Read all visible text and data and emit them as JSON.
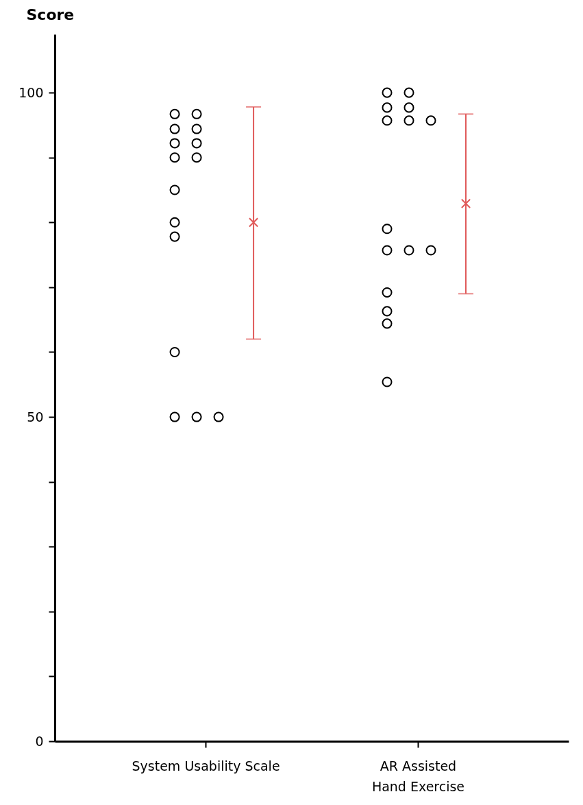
{
  "chart_data": {
    "type": "scatter",
    "ylabel": "Score",
    "categories": [
      "System Usability Scale",
      "AR Assisted Hand Exercise"
    ],
    "ylim": [
      0,
      109
    ],
    "yticks": [
      0,
      {
        "value": 10,
        "label": null
      },
      {
        "value": 20,
        "label": null
      },
      {
        "value": 30,
        "label": null
      },
      {
        "value": 40,
        "label": null
      },
      50,
      {
        "value": 60,
        "label": null
      },
      {
        "value": 70,
        "label": null
      },
      {
        "value": 80,
        "label": null
      },
      {
        "value": 90,
        "label": null
      },
      100
    ],
    "grid": false,
    "series": [
      {
        "type": "scatter",
        "marker": "circle",
        "color": "#000000",
        "x": [
          "System Usability Scale",
          "System Usability Scale",
          "System Usability Scale",
          "System Usability Scale",
          "System Usability Scale",
          "System Usability Scale",
          "System Usability Scale",
          "System Usability Scale",
          "System Usability Scale",
          "System Usability Scale",
          "System Usability Scale",
          "System Usability Scale",
          "System Usability Scale",
          "System Usability Scale",
          "System Usability Scale",
          "AR Assisted Hand Exercise",
          "AR Assisted Hand Exercise",
          "AR Assisted Hand Exercise",
          "AR Assisted Hand Exercise",
          "AR Assisted Hand Exercise",
          "AR Assisted Hand Exercise",
          "AR Assisted Hand Exercise",
          "AR Assisted Hand Exercise",
          "AR Assisted Hand Exercise",
          "AR Assisted Hand Exercise",
          "AR Assisted Hand Exercise",
          "AR Assisted Hand Exercise",
          "AR Assisted Hand Exercise",
          "AR Assisted Hand Exercise",
          "AR Assisted Hand Exercise"
        ],
        "values": [
          96.7,
          96.7,
          94.4,
          94.4,
          92.2,
          92.2,
          90,
          90,
          85,
          80,
          77.8,
          60,
          50,
          50,
          50,
          100,
          100,
          97.7,
          97.7,
          95.7,
          95.7,
          95.7,
          79,
          75.7,
          75.7,
          75.7,
          69.2,
          66.3,
          64.4,
          55.4
        ]
      },
      {
        "type": "scatter",
        "marker": "cross",
        "color": "#e05a5a",
        "x": [
          "System Usability Scale",
          "AR Assisted Hand Exercise"
        ],
        "values": [
          80,
          82.9
        ],
        "errors": [
          [
            62,
            97.8
          ],
          [
            69,
            96.7
          ]
        ]
      }
    ]
  }
}
